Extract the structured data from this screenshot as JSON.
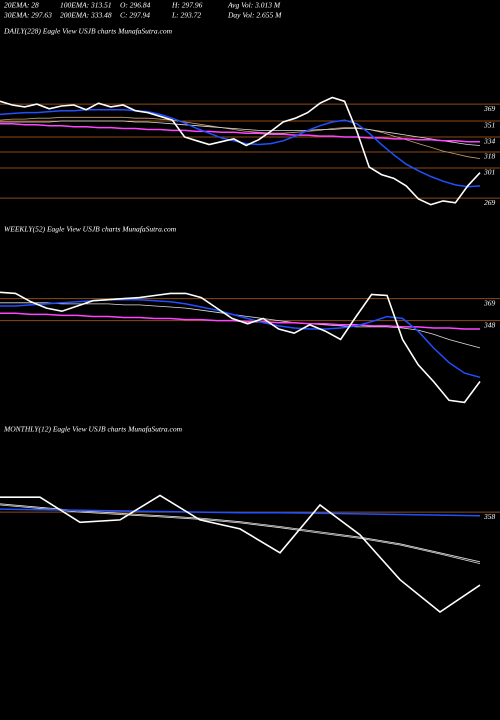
{
  "header": {
    "row1": [
      "20EMA: 28",
      "100EMA: 313.51",
      "O: 296.84",
      "H: 297.96",
      "Avg Vol: 3.013 M"
    ],
    "row2": [
      "30EMA: 297.63",
      "200EMA: 333.48",
      "C: 297.94",
      "L: 293.72",
      "Day Vol: 2.655 M"
    ]
  },
  "chart_data": [
    {
      "type": "line",
      "title": "DAILY(228) Eagle  View  USJB charts MunafaSutra.com",
      "ylim": [
        251,
        384
      ],
      "yticks": [
        369,
        351,
        334,
        318,
        301,
        269
      ],
      "grid": true,
      "grid_color": "#8b4a1a",
      "series": [
        {
          "color": "#c8a070",
          "values": [
            352,
            353,
            353,
            354,
            354,
            355,
            355,
            355,
            355,
            355,
            355,
            354,
            354,
            353,
            352,
            350,
            348,
            346,
            344,
            342,
            340,
            339,
            338,
            338,
            339,
            340,
            341,
            343,
            344,
            344,
            342,
            339,
            335,
            331,
            327,
            323,
            319,
            316,
            313,
            311
          ]
        },
        {
          "color": "#dddddd",
          "values": [
            350,
            350,
            350,
            350,
            350,
            351,
            351,
            351,
            351,
            351,
            351,
            350,
            350,
            349,
            348,
            347,
            346,
            345,
            344,
            343,
            342,
            341,
            341,
            341,
            341,
            341,
            342,
            342,
            343,
            343,
            342,
            340,
            338,
            336,
            334,
            332,
            330,
            328,
            326,
            325
          ]
        },
        {
          "color": "#ff44ff",
          "values": [
            348,
            348,
            347,
            347,
            346,
            346,
            345,
            345,
            344,
            344,
            343,
            343,
            342,
            342,
            341,
            341,
            340,
            340,
            339,
            339,
            338,
            338,
            337,
            337,
            336,
            336,
            335,
            335,
            334,
            334,
            333,
            333,
            332,
            332,
            331,
            331,
            330,
            330,
            329,
            329
          ]
        },
        {
          "color": "#2050ff",
          "values": [
            358,
            359,
            360,
            360,
            361,
            362,
            362,
            363,
            363,
            363,
            363,
            362,
            361,
            358,
            354,
            349,
            343,
            338,
            333,
            330,
            327,
            326,
            327,
            330,
            335,
            341,
            346,
            350,
            352,
            348,
            338,
            326,
            315,
            305,
            298,
            292,
            287,
            283,
            281,
            282
          ]
        },
        {
          "color": "#ffffff",
          "values": [
            372,
            368,
            366,
            369,
            364,
            367,
            368,
            363,
            370,
            366,
            368,
            362,
            360,
            356,
            352,
            334,
            330,
            326,
            329,
            332,
            325,
            331,
            340,
            350,
            354,
            360,
            370,
            376,
            372,
            340,
            302,
            294,
            290,
            282,
            268,
            262,
            266,
            264,
            282,
            296
          ]
        }
      ]
    },
    {
      "type": "line",
      "title": "WEEKLY(52) Eagle  View  USJB charts MunafaSutra.com",
      "ylim": [
        258,
        382
      ],
      "yticks": [
        369,
        348
      ],
      "grid": true,
      "grid_color": "#8b4a1a",
      "series": [
        {
          "color": "#dddddd",
          "values": [
            365,
            365,
            365,
            365,
            364,
            364,
            364,
            364,
            363,
            363,
            362,
            361,
            360,
            358,
            356,
            354,
            352,
            350,
            348,
            346,
            345,
            344,
            343,
            342,
            342,
            342,
            341,
            339,
            335,
            330,
            326,
            322
          ]
        },
        {
          "color": "#ff44ff",
          "values": [
            355,
            355,
            354,
            354,
            353,
            353,
            352,
            352,
            351,
            351,
            350,
            350,
            349,
            349,
            348,
            348,
            347,
            347,
            346,
            346,
            345,
            345,
            344,
            344,
            343,
            343,
            342,
            342,
            341,
            341,
            340,
            340
          ]
        },
        {
          "color": "#2050ff",
          "values": [
            362,
            362,
            363,
            364,
            365,
            366,
            367,
            368,
            368,
            368,
            367,
            366,
            364,
            361,
            358,
            354,
            350,
            346,
            343,
            341,
            340,
            340,
            341,
            343,
            347,
            352,
            350,
            338,
            322,
            308,
            298,
            294
          ]
        },
        {
          "color": "#ffffff",
          "values": [
            375,
            374,
            366,
            360,
            357,
            362,
            367,
            368,
            369,
            370,
            372,
            374,
            374,
            370,
            360,
            350,
            345,
            350,
            340,
            336,
            344,
            338,
            330,
            352,
            373,
            372,
            330,
            306,
            290,
            272,
            270,
            290
          ]
        }
      ]
    },
    {
      "type": "line",
      "title": "MONTHLY(12) Eagle  View  USJB charts MunafaSutra.com",
      "ylim": [
        186,
        395
      ],
      "yticks": [
        358
      ],
      "grid": true,
      "grid_color": "#8b4a1a",
      "series": [
        {
          "color": "#dddddd",
          "values": [
            372,
            366,
            360,
            356,
            352,
            348,
            342,
            334,
            325,
            316,
            305,
            290,
            275
          ]
        },
        {
          "color": "#dddddd",
          "values": [
            370,
            364,
            358,
            354,
            350,
            346,
            340,
            332,
            323,
            314,
            303,
            288,
            272
          ]
        },
        {
          "color": "#2050ff",
          "values": [
            363,
            362,
            361,
            360,
            359,
            358,
            357,
            357,
            356,
            355,
            354,
            353,
            352
          ]
        },
        {
          "color": "#ffffff",
          "values": [
            383,
            383,
            341,
            345,
            386,
            345,
            330,
            290,
            370,
            320,
            245,
            191,
            236
          ]
        }
      ]
    }
  ]
}
